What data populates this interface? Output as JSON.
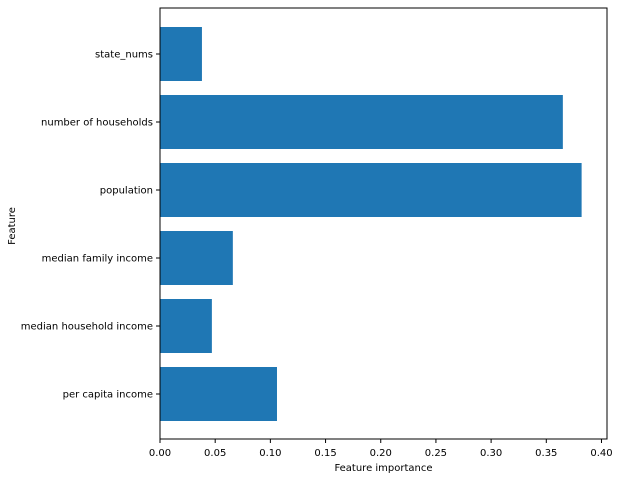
{
  "chart_data": {
    "type": "bar",
    "orientation": "horizontal",
    "categories": [
      "state_nums",
      "number of households",
      "population",
      "median family income",
      "median household income",
      "per capita income"
    ],
    "values": [
      0.038,
      0.365,
      0.382,
      0.066,
      0.047,
      0.106
    ],
    "xlabel": "Feature importance",
    "ylabel": "Feature",
    "xlim": [
      0,
      0.405
    ],
    "xticks": [
      0.0,
      0.05,
      0.1,
      0.15,
      0.2,
      0.25,
      0.3,
      0.35,
      0.4
    ],
    "xtick_labels": [
      "0.00",
      "0.05",
      "0.10",
      "0.15",
      "0.20",
      "0.25",
      "0.30",
      "0.35",
      "0.40"
    ],
    "grid": false,
    "bar_color": "#1f77b4"
  }
}
